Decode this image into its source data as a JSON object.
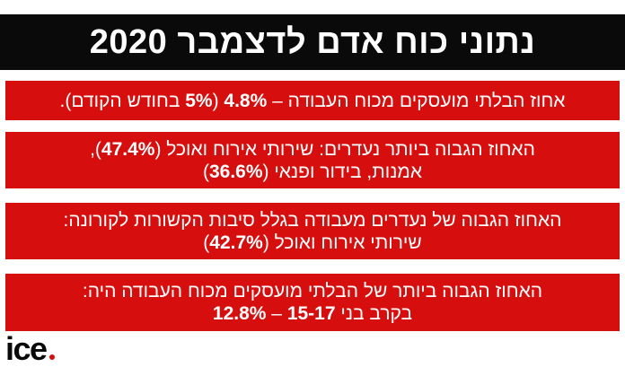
{
  "header": {
    "title": "נתוני כוח אדם לדצמבר 2020"
  },
  "cards": [
    {
      "lines": [
        [
          {
            "text": "אחוז הבלתי מועסקים מכוח העבודה – ",
            "bold": false
          },
          {
            "text": "4.8%",
            "bold": true
          },
          {
            "text": " (",
            "bold": false
          },
          {
            "text": "5%",
            "bold": true
          },
          {
            "text": " בחודש הקודם).",
            "bold": false
          }
        ]
      ]
    },
    {
      "lines": [
        [
          {
            "text": "האחוז הגבוה ביותר נעדרים: שירותי אירוח ואוכל (",
            "bold": false
          },
          {
            "text": "47.4%",
            "bold": true
          },
          {
            "text": "),",
            "bold": false
          }
        ],
        [
          {
            "text": "אמנות, בידור ופנאי (",
            "bold": false
          },
          {
            "text": "36.6%",
            "bold": true
          },
          {
            "text": ")",
            "bold": false
          }
        ]
      ]
    },
    {
      "lines": [
        [
          {
            "text": "האחוז הגבוה של נעדרים מעבודה בגלל סיבות הקשורות לקורונה:",
            "bold": false
          }
        ],
        [
          {
            "text": "שירותי אירוח ואוכל (",
            "bold": false
          },
          {
            "text": "42.7%",
            "bold": true
          },
          {
            "text": ")",
            "bold": false
          }
        ]
      ]
    },
    {
      "lines": [
        [
          {
            "text": "האחוז הגבוה ביותר של הבלתי מועסקים מכוח העבודה היה:",
            "bold": false
          }
        ],
        [
          {
            "text": "בקרב בני ",
            "bold": false
          },
          {
            "text": "15-17",
            "bold": true
          },
          {
            "text": " – ",
            "bold": false
          },
          {
            "text": "12.8%",
            "bold": true
          }
        ]
      ]
    }
  ],
  "logo": {
    "text": "ice",
    "dot_color": "#d60e0e"
  },
  "colors": {
    "title_bg": "#0a0a0a",
    "card_bg": "#d60e0e",
    "text": "#ffffff"
  }
}
